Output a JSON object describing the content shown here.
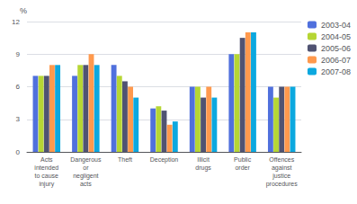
{
  "chart_data": {
    "type": "bar",
    "categories": [
      "Acts\nintended\nto cause\ninjury",
      "Dangerous\nor\nnegligent\nacts",
      "Theft",
      "Deception",
      "Illicit\ndrugs",
      "Public\norder",
      "Offences\nagainst\njustice\nprocedures"
    ],
    "series": [
      {
        "name": "2003-04",
        "values": [
          7.0,
          7.0,
          8.0,
          4.0,
          6.0,
          9.0,
          6.0
        ]
      },
      {
        "name": "2004-05",
        "values": [
          7.0,
          8.0,
          7.0,
          4.2,
          6.0,
          9.0,
          5.0
        ]
      },
      {
        "name": "2005-06",
        "values": [
          7.0,
          8.0,
          6.5,
          3.8,
          5.0,
          10.5,
          6.0
        ]
      },
      {
        "name": "2006-07",
        "values": [
          8.0,
          9.0,
          6.0,
          2.5,
          6.0,
          11.0,
          6.0
        ]
      },
      {
        "name": "2007-08",
        "values": [
          8.0,
          8.0,
          5.0,
          2.8,
          5.0,
          11.0,
          6.0
        ]
      }
    ],
    "ylabel": "%",
    "ylim": [
      0,
      12
    ],
    "yticks": [
      0,
      3,
      6,
      9,
      12
    ],
    "grid": true,
    "legend": "upper right"
  }
}
